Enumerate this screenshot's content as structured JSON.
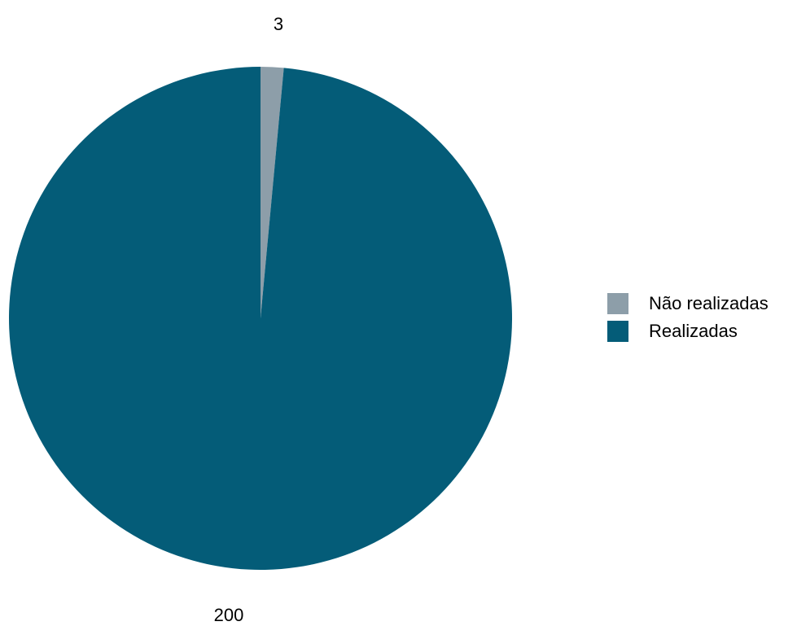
{
  "chart_data": {
    "type": "pie",
    "title": "",
    "categories": [
      "Não realizadas",
      "Realizadas"
    ],
    "values": [
      3,
      200
    ],
    "colors": [
      "#8d9ea9",
      "#045c78"
    ],
    "data_labels": [
      "3",
      "200"
    ],
    "legend_position": "right",
    "start_angle": "12 o'clock",
    "direction": "clockwise"
  }
}
